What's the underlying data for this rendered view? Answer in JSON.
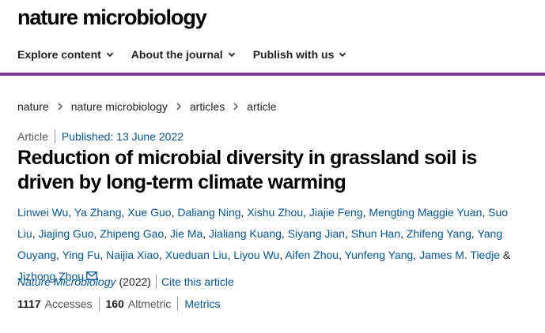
{
  "header": {
    "brand": "nature microbiology"
  },
  "nav": [
    {
      "label": "Explore content"
    },
    {
      "label": "About the journal"
    },
    {
      "label": "Publish with us"
    }
  ],
  "breadcrumb": [
    "nature",
    "nature microbiology",
    "articles",
    "article"
  ],
  "article": {
    "type": "Article",
    "published": "Published: 13 June 2022",
    "title": "Reduction of microbial diversity in grassland soil is driven by long-term climate warming",
    "authors": [
      "Linwei Wu",
      "Ya Zhang",
      "Xue Guo",
      "Daliang Ning",
      "Xishu Zhou",
      "Jiajie Feng",
      "Mengting Maggie Yuan",
      "Suo Liu",
      "Jiajing Guo",
      "Zhipeng Gao",
      "Jie Ma",
      "Jialiang Kuang",
      "Siyang Jian",
      "Shun Han",
      "Zhifeng Yang",
      "Yang Ouyang",
      "Ying Fu",
      "Naijia Xiao",
      "Xueduan Liu",
      "Liyou Wu",
      "Aifen Zhou",
      "Yunfeng Yang",
      "James M. Tiedje",
      "Jizhong Zhou"
    ],
    "journal": "Nature Microbiology",
    "year": "(2022)",
    "cite": "Cite this article"
  },
  "metrics": {
    "accesses_count": "1117",
    "accesses_label": "Accesses",
    "altmetric_count": "160",
    "altmetric_label": "Altmetric",
    "metrics_link": "Metrics"
  },
  "colors": {
    "accent_bar": "#7f3f98",
    "link": "#01579b"
  },
  "icons": {
    "nav_dropdown": "chevron-down-icon",
    "breadcrumb_separator": "chevron-right-icon",
    "corresponding_author": "mail-icon"
  }
}
